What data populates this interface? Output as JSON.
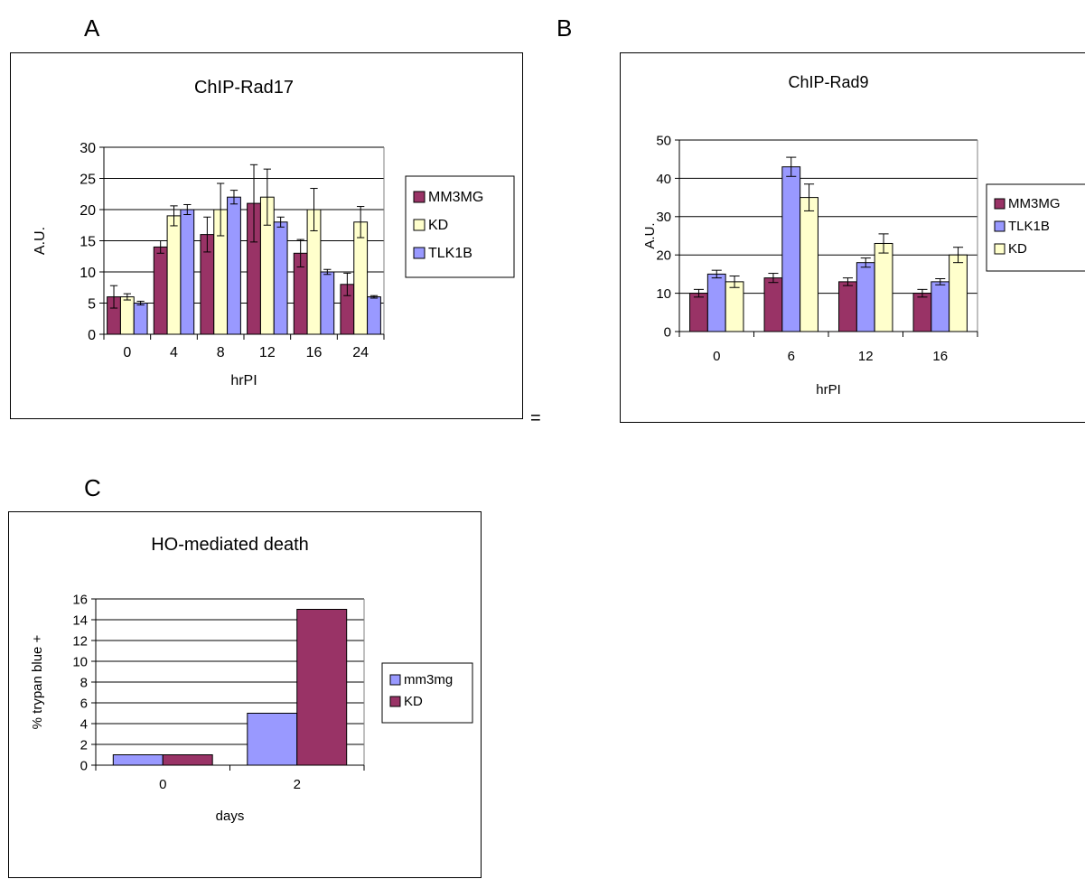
{
  "panels": {
    "a_label": "A",
    "b_label": "B",
    "c_label": "C",
    "stray_mark": "="
  },
  "colors": {
    "maroon": "#993366",
    "light_yellow": "#FFFFCC",
    "periwinkle": "#9999FF",
    "gridline": "#000000"
  },
  "chart_data": [
    {
      "id": "A",
      "type": "bar",
      "title": "ChIP-Rad17",
      "xlabel": "hrPI",
      "ylabel": "A.U.",
      "ylim": [
        0,
        30
      ],
      "yticks": [
        "0",
        "5",
        "10",
        "15",
        "20",
        "25",
        "30"
      ],
      "categories": [
        "0",
        "4",
        "8",
        "12",
        "16",
        "24"
      ],
      "grid": true,
      "legend_position": "right",
      "series": [
        {
          "name": "MM3MG",
          "color": "#993366",
          "values": [
            6,
            14,
            16,
            21,
            13,
            8
          ],
          "errors": [
            1.8,
            1.0,
            2.8,
            6.2,
            2.2,
            1.8
          ]
        },
        {
          "name": "KD",
          "color": "#FFFFCC",
          "values": [
            6,
            19,
            20,
            22,
            20,
            18
          ],
          "errors": [
            0.5,
            1.6,
            4.2,
            4.5,
            3.4,
            2.5
          ]
        },
        {
          "name": "TLK1B",
          "color": "#9999FF",
          "values": [
            5,
            20,
            22,
            18,
            10,
            6
          ],
          "errors": [
            0.3,
            0.8,
            1.1,
            0.8,
            0.4,
            0.2
          ]
        }
      ]
    },
    {
      "id": "B",
      "type": "bar",
      "title": "ChIP-Rad9",
      "xlabel": "hrPI",
      "ylabel": "A.U.",
      "ylim": [
        0,
        50
      ],
      "yticks": [
        "0",
        "10",
        "20",
        "30",
        "40",
        "50"
      ],
      "categories": [
        "0",
        "6",
        "12",
        "16"
      ],
      "grid": true,
      "legend_position": "right",
      "series": [
        {
          "name": "MM3MG",
          "color": "#993366",
          "values": [
            10,
            14,
            13,
            10
          ],
          "errors": [
            1.0,
            1.2,
            1.0,
            1.0
          ]
        },
        {
          "name": "TLK1B",
          "color": "#9999FF",
          "values": [
            15,
            43,
            18,
            13
          ],
          "errors": [
            1.0,
            2.5,
            1.2,
            0.8
          ]
        },
        {
          "name": "KD",
          "color": "#FFFFCC",
          "values": [
            13,
            35,
            23,
            20
          ],
          "errors": [
            1.5,
            3.5,
            2.5,
            2.0
          ]
        }
      ]
    },
    {
      "id": "C",
      "type": "bar",
      "title": "HO-mediated death",
      "xlabel": "days",
      "ylabel": "% trypan blue +",
      "ylim": [
        0,
        16
      ],
      "yticks": [
        "0",
        "2",
        "4",
        "6",
        "8",
        "10",
        "12",
        "14",
        "16"
      ],
      "categories": [
        "0",
        "2"
      ],
      "grid": true,
      "legend_position": "right",
      "series": [
        {
          "name": "mm3mg",
          "color": "#9999FF",
          "values": [
            1,
            5
          ]
        },
        {
          "name": "KD",
          "color": "#993366",
          "values": [
            1,
            15
          ]
        }
      ]
    }
  ]
}
